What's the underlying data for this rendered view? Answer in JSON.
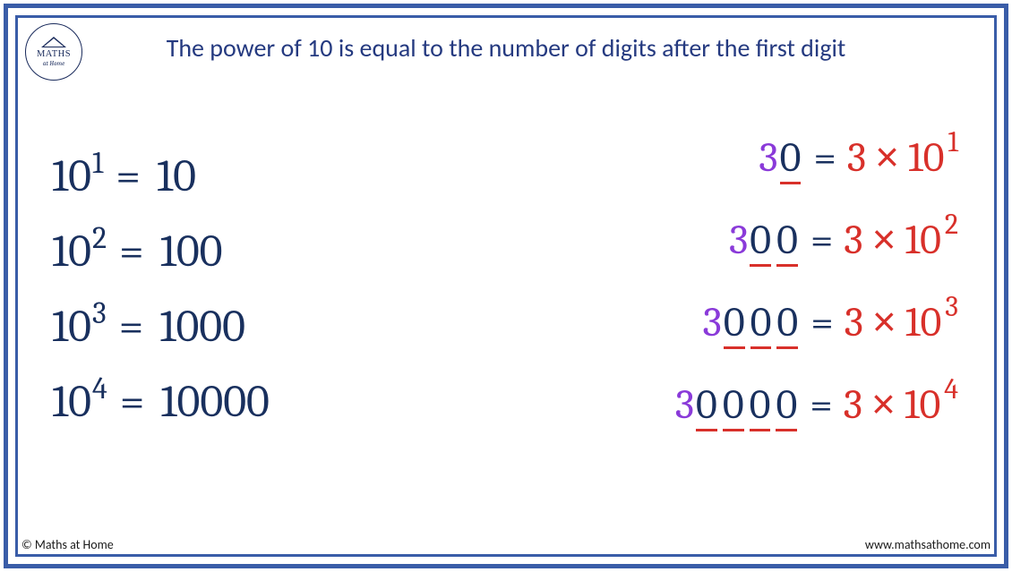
{
  "logo": {
    "main": "MATHS",
    "sub": "at Home"
  },
  "title": "The power of 10 is equal to the number of digits after the first digit",
  "colors": {
    "frame": "#3a5da8",
    "title": "#253a80",
    "navy": "#19305e",
    "purple": "#8a3ad9",
    "red": "#d8302a",
    "white": "#ffffff"
  },
  "typography": {
    "title_fontsize": 28,
    "left_fontsize": 50,
    "right_fontsize": 46,
    "exp_fontsize": 34,
    "logo_main_fontsize": 10.5,
    "logo_sub_fontsize": 7,
    "footer_fontsize": 14
  },
  "left": [
    {
      "base": "10",
      "exp": "1",
      "eq": "=",
      "rhs": "10"
    },
    {
      "base": "10",
      "exp": "2",
      "eq": "=",
      "rhs": "100"
    },
    {
      "base": "10",
      "exp": "3",
      "eq": "=",
      "rhs": "1000"
    },
    {
      "base": "10",
      "exp": "4",
      "eq": "=",
      "rhs": "10000"
    }
  ],
  "right": [
    {
      "lead": "3",
      "trail": [
        "0"
      ],
      "eq": "=",
      "coef": "3",
      "times": "×",
      "base": "10",
      "exp": "1"
    },
    {
      "lead": "3",
      "trail": [
        "0",
        "0"
      ],
      "eq": "=",
      "coef": "3",
      "times": "×",
      "base": "10",
      "exp": "2"
    },
    {
      "lead": "3",
      "trail": [
        "0",
        "0",
        "0"
      ],
      "eq": "=",
      "coef": "3",
      "times": "×",
      "base": "10",
      "exp": "3"
    },
    {
      "lead": "3",
      "trail": [
        "0",
        "0",
        "0",
        "0"
      ],
      "eq": "=",
      "coef": "3",
      "times": "×",
      "base": "10",
      "exp": "4"
    }
  ],
  "footer": {
    "left": "© Maths at Home",
    "right": "www.mathsathome.com"
  }
}
